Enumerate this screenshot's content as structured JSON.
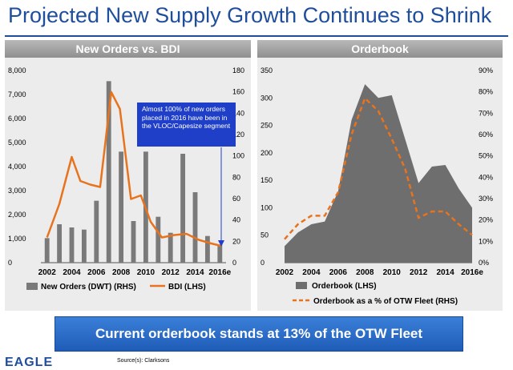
{
  "title": "Projected New Supply Growth Continues to Shrink",
  "banner": "Current orderbook stands at 13% of the OTW Fleet",
  "logo_text": "EAGLE",
  "source": "Source(s): Clarksons",
  "callout": "Almost 100% of new orders placed in 2016 have been in the VLOC/Capesize segment",
  "colors": {
    "title": "#1f4e9c",
    "bar": "#7a7a7a",
    "line": "#e8731e",
    "area": "#6e6e6e",
    "banner": "#2a6ccb"
  },
  "chart_data": [
    {
      "type": "bar",
      "title": "New Orders vs. BDI",
      "x_ticks": [
        "2002",
        "2004",
        "2006",
        "2008",
        "2010",
        "2012",
        "2014",
        "2016e"
      ],
      "left_ticks": [
        "0",
        "1,000",
        "2,000",
        "3,000",
        "4,000",
        "5,000",
        "6,000",
        "7,000",
        "8,000"
      ],
      "right_ticks": [
        "0",
        "20",
        "40",
        "60",
        "80",
        "100",
        "120",
        "140",
        "160",
        "180"
      ],
      "ylim_left": [
        0,
        8000
      ],
      "ylim_right": [
        0,
        180
      ],
      "bar_x": [
        2002,
        2003,
        2004,
        2005,
        2006,
        2007,
        2008,
        2009,
        2010,
        2011,
        2012,
        2013,
        2014,
        2015,
        2016
      ],
      "series": [
        {
          "name": "New Orders (DWT) (RHS)",
          "kind": "bar",
          "axis": "right",
          "x": [
            2002,
            2003,
            2004,
            2005,
            2006,
            2007,
            2008,
            2009,
            2010,
            2011,
            2012,
            2013,
            2014,
            2015,
            2016
          ],
          "values": [
            23,
            36,
            33,
            31,
            58,
            170,
            104,
            39,
            104,
            43,
            28,
            102,
            66,
            25,
            17
          ]
        },
        {
          "name": "BDI (LHS)",
          "kind": "line",
          "axis": "left",
          "x": [
            2002,
            2003,
            2004,
            2004.7,
            2005.5,
            2006.3,
            2007.2,
            2007.9,
            2008.8,
            2009.6,
            2010.4,
            2011.3,
            2012.3,
            2013.3,
            2014.3,
            2015.3,
            2016.1
          ],
          "values": [
            1050,
            2450,
            4400,
            3400,
            3250,
            3150,
            7100,
            6400,
            2650,
            2800,
            1700,
            1050,
            1150,
            1200,
            950,
            800,
            700
          ]
        }
      ],
      "legend_position": "bottom"
    },
    {
      "type": "area",
      "title": "Orderbook",
      "x_ticks": [
        "2002",
        "2004",
        "2006",
        "2008",
        "2010",
        "2012",
        "2014",
        "2016e"
      ],
      "left_ticks": [
        "0",
        "50",
        "100",
        "150",
        "200",
        "250",
        "300",
        "350"
      ],
      "right_ticks": [
        "0%",
        "10%",
        "20%",
        "30%",
        "40%",
        "50%",
        "60%",
        "70%",
        "80%",
        "90%"
      ],
      "ylim_left": [
        0,
        350
      ],
      "ylim_right": [
        0,
        90
      ],
      "series": [
        {
          "name": "Orderbook (LHS)",
          "kind": "area",
          "axis": "left",
          "x": [
            2002,
            2003,
            2004,
            2005,
            2006,
            2007,
            2008,
            2009,
            2010,
            2011,
            2012,
            2013,
            2014,
            2015,
            2016
          ],
          "values": [
            30,
            55,
            70,
            75,
            130,
            260,
            325,
            300,
            305,
            225,
            145,
            175,
            178,
            135,
            100
          ]
        },
        {
          "name": "Orderbook as a % of OTW Fleet (RHS)",
          "kind": "dashed-line",
          "axis": "right",
          "x": [
            2002,
            2003,
            2004,
            2005,
            2006,
            2007,
            2008,
            2009,
            2010,
            2011,
            2012,
            2013,
            2014,
            2015,
            2016
          ],
          "values": [
            11,
            18,
            22,
            22,
            33,
            60,
            77,
            71,
            58,
            44,
            21,
            24,
            24,
            18,
            13
          ]
        }
      ],
      "legend_position": "bottom"
    }
  ]
}
